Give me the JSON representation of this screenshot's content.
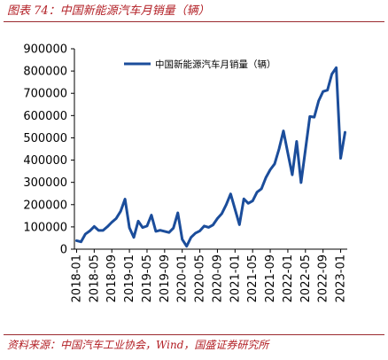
{
  "figure_title": "图表 74：中国新能源汽车月销量（辆）",
  "source": "资料来源：中国汽车工业协会，Wind，国盛证券研究所",
  "colors": {
    "series": "#1b4d9b",
    "accent": "#b21e24"
  },
  "chart_data": {
    "type": "line",
    "title": "",
    "xlabel": "",
    "ylabel": "",
    "ylim": [
      0,
      900000
    ],
    "yticks": [
      0,
      100000,
      200000,
      300000,
      400000,
      500000,
      600000,
      700000,
      800000,
      900000
    ],
    "xtick_labels": [
      "2018-01",
      "2018-05",
      "2018-09",
      "2019-01",
      "2019-05",
      "2019-09",
      "2020-01",
      "2020-05",
      "2020-09",
      "2021-01",
      "2021-05",
      "2021-09",
      "2022-01",
      "2022-05",
      "2022-09",
      "2023-01"
    ],
    "grid": false,
    "legend": "top-center",
    "x": [
      "2018-01",
      "2018-02",
      "2018-03",
      "2018-04",
      "2018-05",
      "2018-06",
      "2018-07",
      "2018-08",
      "2018-09",
      "2018-10",
      "2018-11",
      "2018-12",
      "2019-01",
      "2019-02",
      "2019-03",
      "2019-04",
      "2019-05",
      "2019-06",
      "2019-07",
      "2019-08",
      "2019-09",
      "2019-10",
      "2019-11",
      "2019-12",
      "2020-01",
      "2020-02",
      "2020-03",
      "2020-04",
      "2020-05",
      "2020-06",
      "2020-07",
      "2020-08",
      "2020-09",
      "2020-10",
      "2020-11",
      "2020-12",
      "2021-01",
      "2021-02",
      "2021-03",
      "2021-04",
      "2021-05",
      "2021-06",
      "2021-07",
      "2021-08",
      "2021-09",
      "2021-10",
      "2021-11",
      "2021-12",
      "2022-01",
      "2022-02",
      "2022-03",
      "2022-04",
      "2022-05",
      "2022-06",
      "2022-07",
      "2022-08",
      "2022-09",
      "2022-10",
      "2022-11",
      "2022-12",
      "2023-01",
      "2023-02"
    ],
    "series": [
      {
        "name": "中国新能源汽车月销量（辆）",
        "values": [
          38000,
          33000,
          68000,
          82000,
          102000,
          84000,
          84000,
          101000,
          121000,
          138000,
          170000,
          225000,
          96000,
          53000,
          126000,
          97000,
          104000,
          153000,
          80000,
          85000,
          80000,
          75000,
          95000,
          163000,
          44000,
          13000,
          53000,
          72000,
          82000,
          104000,
          98000,
          109000,
          138000,
          160000,
          200000,
          248000,
          179000,
          110000,
          226000,
          206000,
          217000,
          256000,
          271000,
          321000,
          357000,
          383000,
          450000,
          531000,
          431000,
          334000,
          484000,
          299000,
          447000,
          596000,
          593000,
          666000,
          708000,
          714000,
          786000,
          815000,
          408000,
          525000
        ]
      }
    ]
  }
}
